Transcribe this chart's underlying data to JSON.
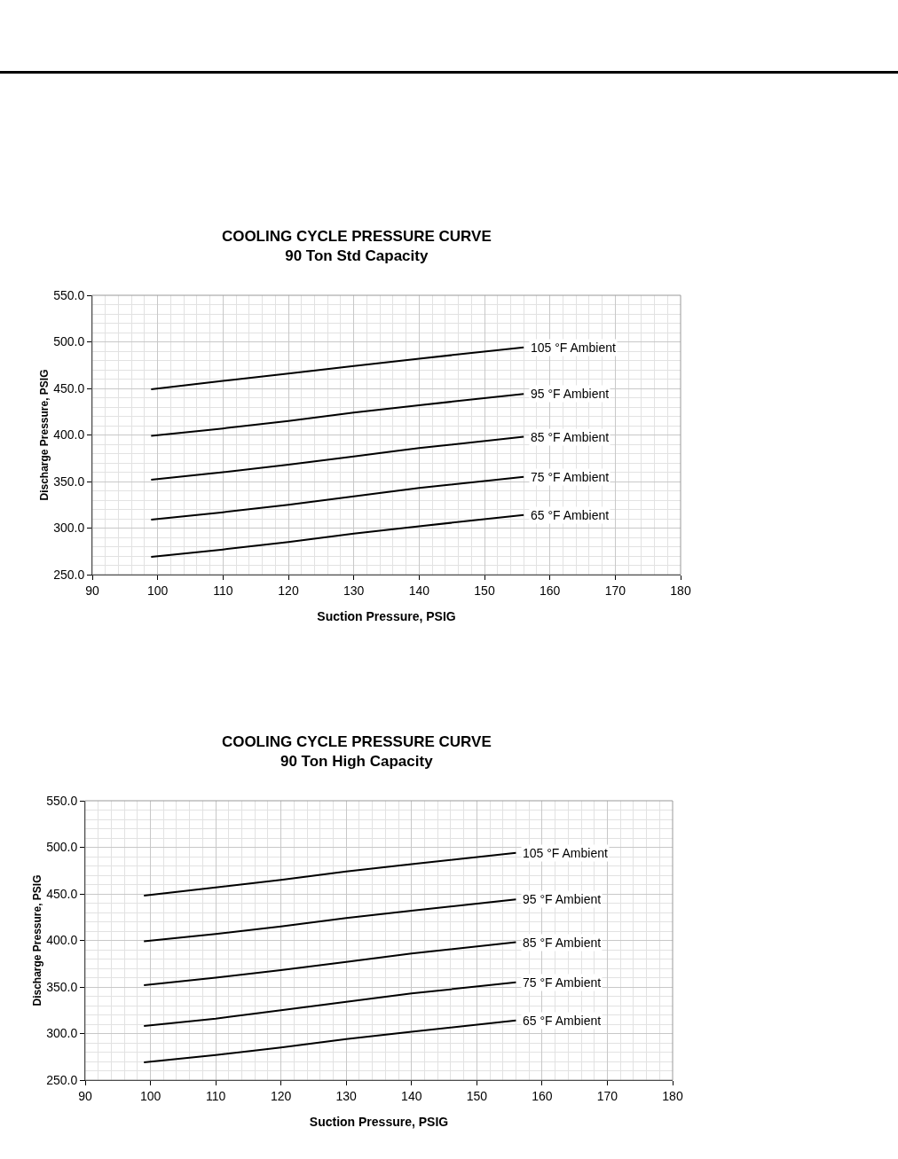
{
  "chart_data": [
    {
      "type": "line",
      "title": "COOLING CYCLE PRESSURE CURVE",
      "subtitle": "90 Ton Std Capacity",
      "xlabel": "Suction Pressure, PSIG",
      "ylabel": "Discharge Pressure, PSIG",
      "x": [
        99,
        110,
        120,
        130,
        140,
        156
      ],
      "xlim": [
        90,
        180
      ],
      "xticks": [
        90,
        100,
        110,
        120,
        130,
        140,
        150,
        160,
        170,
        180
      ],
      "ylim": [
        250,
        550
      ],
      "yticks": [
        {
          "value": 250,
          "label": "250.0"
        },
        {
          "value": 300,
          "label": "300.0"
        },
        {
          "value": 350,
          "label": "350.0"
        },
        {
          "value": 400,
          "label": "400.0"
        },
        {
          "value": 450,
          "label": "450.0"
        },
        {
          "value": 500,
          "label": "500.0"
        },
        {
          "value": 550,
          "label": "550.0"
        }
      ],
      "grid": true,
      "legend": false,
      "marker": "none",
      "line_style": "solid",
      "series": [
        {
          "name": "105 °F Ambient",
          "color": "#000000",
          "values": [
            449,
            458,
            466,
            474,
            482,
            494
          ]
        },
        {
          "name": "95 °F Ambient",
          "color": "#000000",
          "values": [
            399,
            407,
            415,
            424,
            432,
            444
          ]
        },
        {
          "name": "85 °F Ambient",
          "color": "#000000",
          "values": [
            352,
            360,
            368,
            377,
            386,
            398
          ]
        },
        {
          "name": "75 °F Ambient",
          "color": "#000000",
          "values": [
            309,
            317,
            325,
            334,
            343,
            355
          ]
        },
        {
          "name": "65 °F Ambient",
          "color": "#000000",
          "values": [
            269,
            277,
            285,
            294,
            302,
            314
          ]
        }
      ]
    },
    {
      "type": "line",
      "title": "COOLING CYCLE PRESSURE CURVE",
      "subtitle": "90 Ton High Capacity",
      "xlabel": "Suction Pressure, PSIG",
      "ylabel": "Discharge Pressure, PSIG",
      "x": [
        99,
        110,
        120,
        130,
        140,
        156
      ],
      "xlim": [
        90,
        180
      ],
      "xticks": [
        90,
        100,
        110,
        120,
        130,
        140,
        150,
        160,
        170,
        180
      ],
      "ylim": [
        250,
        550
      ],
      "yticks": [
        {
          "value": 250,
          "label": "250.0"
        },
        {
          "value": 300,
          "label": "300.0"
        },
        {
          "value": 350,
          "label": "350.0"
        },
        {
          "value": 400,
          "label": "400.0"
        },
        {
          "value": 450,
          "label": "450.0"
        },
        {
          "value": 500,
          "label": "500.0"
        },
        {
          "value": 550,
          "label": "550.0"
        }
      ],
      "grid": true,
      "legend": false,
      "marker": "none",
      "line_style": "solid",
      "series": [
        {
          "name": "105 °F Ambient",
          "color": "#000000",
          "values": [
            448,
            457,
            465,
            474,
            482,
            494
          ]
        },
        {
          "name": "95 °F Ambient",
          "color": "#000000",
          "values": [
            399,
            407,
            415,
            424,
            432,
            444
          ]
        },
        {
          "name": "85 °F Ambient",
          "color": "#000000",
          "values": [
            352,
            360,
            368,
            377,
            386,
            398
          ]
        },
        {
          "name": "75 °F Ambient",
          "color": "#000000",
          "values": [
            308,
            316,
            325,
            334,
            343,
            355
          ]
        },
        {
          "name": "65 °F Ambient",
          "color": "#000000",
          "values": [
            269,
            277,
            285,
            294,
            302,
            314
          ]
        }
      ]
    }
  ]
}
